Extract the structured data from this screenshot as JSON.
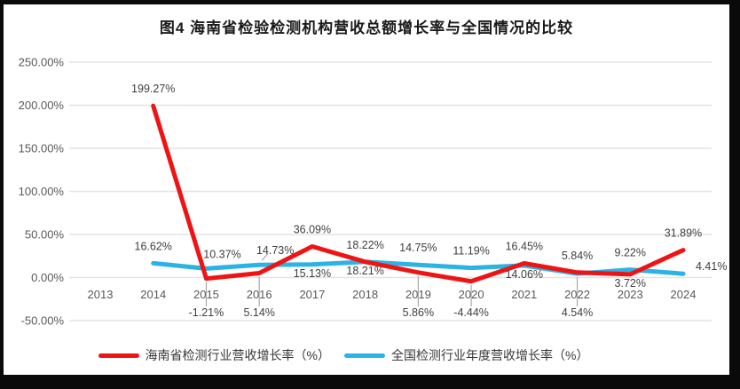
{
  "frame": {
    "border_color": "#0a0a0a",
    "chart_background": "#ffffff"
  },
  "colors": {
    "grid": "#e3e3e3",
    "axis_text": "#595959",
    "data_label_text": "#3f3f3f",
    "leader_line": "#a8a8a8",
    "hainan_red": "#ee1414",
    "national_blue": "#2bb3e6"
  },
  "chart_data": {
    "type": "line",
    "title": "图4 海南省检验检测机构营收总额增长率与全国情况的比较",
    "categories": [
      "2013",
      "2014",
      "2015",
      "2016",
      "2017",
      "2018",
      "2019",
      "2020",
      "2021",
      "2022",
      "2023",
      "2024"
    ],
    "y_axis": {
      "ticks": [
        "250.00%",
        "200.00%",
        "150.00%",
        "100.00%",
        "50.00%",
        "0.00%",
        "-50.00%"
      ],
      "tick_values": [
        250,
        200,
        150,
        100,
        50,
        0,
        -50
      ],
      "ylim": [
        -50,
        250
      ],
      "grid": true
    },
    "series": [
      {
        "name": "海南省检测行业营收增长率（%）",
        "color": "#ee1414",
        "values": [
          null,
          199.27,
          -1.21,
          5.14,
          36.09,
          18.22,
          5.86,
          -4.44,
          16.45,
          5.84,
          3.72,
          31.89
        ],
        "data_labels": [
          null,
          "199.27%",
          "-1.21%",
          "5.14%",
          "36.09%",
          "18.22%",
          "5.86%",
          "-4.44%",
          "16.45%",
          "5.84%",
          "3.72%",
          "31.89%"
        ],
        "label_placement": [
          null,
          "above",
          "callout_below_axis",
          "callout_below_axis",
          "above",
          "above",
          "callout_below_axis",
          "callout_below_axis",
          "above",
          "above",
          "below",
          "above"
        ]
      },
      {
        "name": "全国检测行业年度营收增长率（%）",
        "color": "#2bb3e6",
        "values": [
          null,
          16.62,
          10.37,
          14.73,
          15.13,
          18.21,
          14.75,
          11.19,
          14.06,
          4.54,
          9.22,
          4.41
        ],
        "data_labels": [
          null,
          "16.62%",
          "10.37%",
          "14.73%",
          "15.13%",
          "18.21%",
          "14.75%",
          "11.19%",
          "14.06%",
          "4.54%",
          "9.22%",
          "4.41%"
        ],
        "label_placement": [
          null,
          "above",
          "above_right",
          "above_right_leader",
          "below",
          "below",
          "above",
          "above",
          "below",
          "callout_below_axis",
          "above",
          "right"
        ]
      }
    ],
    "legend_position": "bottom"
  },
  "legend": {
    "items": [
      {
        "label": "海南省检测行业营收增长率（%）",
        "color": "#ee1414"
      },
      {
        "label": "全国检测行业年度营收增长率（%）",
        "color": "#2bb3e6"
      }
    ]
  }
}
